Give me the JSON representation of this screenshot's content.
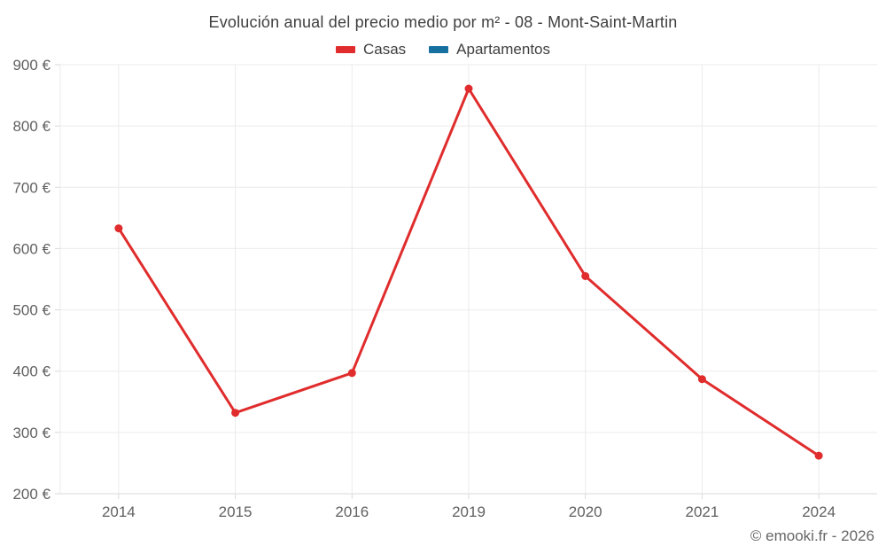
{
  "title": "Evolución anual del precio medio por m² - 08 - Mont-Saint-Martin",
  "legend": {
    "items": [
      {
        "label": "Casas",
        "color": "#e02c2c"
      },
      {
        "label": "Apartamentos",
        "color": "#1670a0"
      }
    ]
  },
  "footer": {
    "credit": "© emooki.fr - 2026"
  },
  "colors": {
    "grid": "#ebebeb",
    "axis": "#d9d9d9",
    "tick_label": "#616161",
    "title_text": "#3f3f3f"
  },
  "chart_data": {
    "type": "line",
    "title": "Evolución anual del precio medio por m² - 08 - Mont-Saint-Martin",
    "xlabel": "",
    "ylabel": "",
    "categories": [
      "2014",
      "2015",
      "2016",
      "2019",
      "2020",
      "2021",
      "2024"
    ],
    "series": [
      {
        "name": "Casas",
        "color": "#e02c2c",
        "values": [
          633,
          332,
          397,
          861,
          555,
          387,
          262
        ]
      },
      {
        "name": "Apartamentos",
        "color": "#1670a0",
        "values": []
      }
    ],
    "ylim": [
      200,
      900
    ],
    "y_tick_step": 100,
    "y_tick_suffix": " €",
    "grid": true,
    "legend_position": "top"
  }
}
